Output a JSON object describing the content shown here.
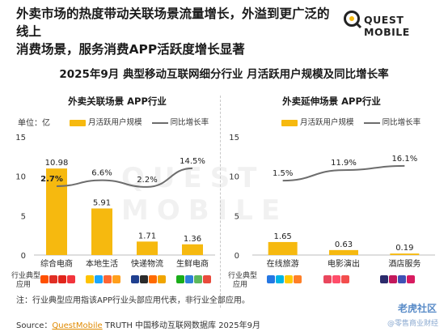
{
  "header": {
    "headline_line1": "外卖市场的热度带动关联场景流量增长，外溢到更广泛的线上",
    "headline_line2": "消费场景，服务消费APP活跃度增长显著",
    "logo_text": "QUEST MOBILE"
  },
  "chart_title": "2025年9月 典型移动互联网细分行业 月活跃用户规模及同比增长率",
  "legend": {
    "bar": "月活跃用户规模",
    "line": "同比增长率"
  },
  "unit_label": "单位：亿",
  "row_label_line1": "行业典型",
  "row_label_line2": "应用",
  "chart_data": [
    {
      "type": "bar",
      "title": "外卖关联场景 APP行业",
      "categories": [
        "综合电商",
        "本地生活",
        "快递物流",
        "生鲜电商"
      ],
      "series": [
        {
          "name": "月活跃用户规模",
          "type": "bar",
          "values": [
            10.98,
            5.91,
            1.71,
            1.36
          ],
          "labels": [
            "10.98",
            "5.91",
            "1.71",
            "1.36"
          ]
        },
        {
          "name": "同比增长率",
          "type": "line",
          "values": [
            2.7,
            6.6,
            2.2,
            14.5
          ],
          "labels": [
            "2.7%",
            "6.6%",
            "2.2%",
            "14.5%"
          ]
        }
      ],
      "ylim": [
        0,
        15
      ],
      "yticks": [
        "0",
        "5",
        "10",
        "15"
      ]
    },
    {
      "type": "bar",
      "title": "外卖延伸场景 APP行业",
      "categories": [
        "在线旅游",
        "电影演出",
        "酒店服务"
      ],
      "series": [
        {
          "name": "月活跃用户规模",
          "type": "bar",
          "values": [
            1.65,
            0.63,
            0.19
          ],
          "labels": [
            "1.65",
            "0.63",
            "0.19"
          ]
        },
        {
          "name": "同比增长率",
          "type": "line",
          "values": [
            1.5,
            11.9,
            16.1
          ],
          "labels": [
            "1.5%",
            "11.9%",
            "16.1%"
          ]
        }
      ],
      "ylim": [
        0,
        15
      ],
      "yticks": [
        "0",
        "5",
        "10",
        "15"
      ]
    }
  ],
  "colors": {
    "bar": "#f6b90f",
    "line": "#6d6d6d",
    "axis": "#bdbdbd"
  },
  "note": "注：行业典型应用指该APP行业头部应用代表，非行业全部应用。",
  "source_prefix": "Source：",
  "source_brand": "QuestMobile",
  "source_rest": " TRUTH 中国移动互联网数据库 2025年9月",
  "watermark": {
    "brand": "老虎社区",
    "sub": "@零售商业财经"
  }
}
